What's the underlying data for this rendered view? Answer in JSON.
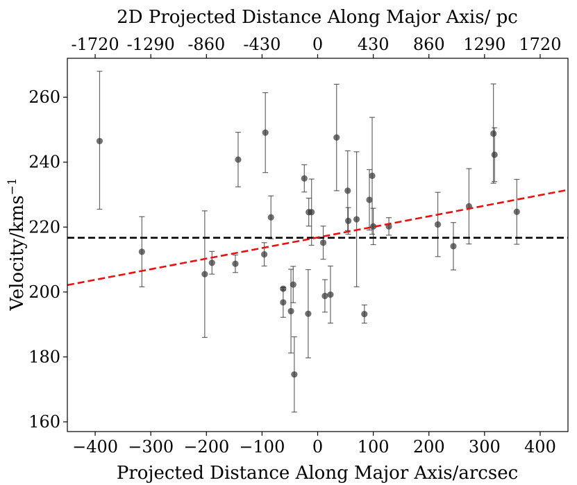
{
  "chart_data": {
    "type": "scatter",
    "title": "",
    "xlabel": "Projected Distance Along Major Axis/arcsec",
    "ylabel_main": "Velocity/kms",
    "ylabel_sup": "−1",
    "top_xlabel": "2D Projected Distance Along Major Axis/ pc",
    "xlim": [
      -450,
      450
    ],
    "ylim": [
      157,
      272
    ],
    "x_ticks": [
      -400,
      -300,
      -200,
      -100,
      0,
      100,
      200,
      300,
      400
    ],
    "x_tick_labels": [
      "−400",
      "−300",
      "−200",
      "−100",
      "0",
      "100",
      "200",
      "300",
      "400"
    ],
    "y_ticks": [
      160,
      180,
      200,
      220,
      240,
      260
    ],
    "y_tick_labels": [
      "160",
      "180",
      "200",
      "220",
      "240",
      "260"
    ],
    "top_ticks_arcsec": [
      -400,
      -300,
      -200,
      -100,
      0,
      100,
      200,
      300,
      400
    ],
    "top_tick_labels": [
      "-1720",
      "-1290",
      "-860",
      "-430",
      "0",
      "430",
      "860",
      "1290",
      "1720"
    ],
    "grid": false,
    "mean_line": {
      "y": 216.7,
      "color": "#000000",
      "style": "dashed"
    },
    "fit_line": {
      "slope": 0.0326,
      "intercept": 216.8,
      "color": "#e8110f",
      "style": "dashed"
    },
    "point_color": "#333333",
    "points": [
      {
        "x": -392,
        "y": 246.5,
        "yerr_low": 21.0,
        "yerr_high": 21.5
      },
      {
        "x": -316,
        "y": 212.4,
        "yerr_low": 10.8,
        "yerr_high": 10.8
      },
      {
        "x": -203,
        "y": 205.5,
        "yerr_low": 19.5,
        "yerr_high": 19.5
      },
      {
        "x": -190,
        "y": 209.0,
        "yerr_low": 3.5,
        "yerr_high": 3.5
      },
      {
        "x": -148,
        "y": 208.7,
        "yerr_low": 2.7,
        "yerr_high": 2.7
      },
      {
        "x": -143,
        "y": 240.8,
        "yerr_low": 8.4,
        "yerr_high": 8.4
      },
      {
        "x": -96,
        "y": 211.6,
        "yerr_low": 3.6,
        "yerr_high": 3.6
      },
      {
        "x": -94,
        "y": 249.1,
        "yerr_low": 12.3,
        "yerr_high": 12.3
      },
      {
        "x": -84,
        "y": 223.0,
        "yerr_low": 6.6,
        "yerr_high": 6.6
      },
      {
        "x": -62,
        "y": 201.0,
        "yerr_low": 0.4,
        "yerr_high": 0.4
      },
      {
        "x": -62,
        "y": 196.8,
        "yerr_low": 4.6,
        "yerr_high": 4.6
      },
      {
        "x": -48,
        "y": 194.1,
        "yerr_low": 12.9,
        "yerr_high": 12.9
      },
      {
        "x": -44,
        "y": 202.3,
        "yerr_low": 5.6,
        "yerr_high": 5.6
      },
      {
        "x": -42,
        "y": 174.6,
        "yerr_low": 11.6,
        "yerr_high": 11.6
      },
      {
        "x": -24,
        "y": 235.0,
        "yerr_low": 4.2,
        "yerr_high": 4.2
      },
      {
        "x": -16,
        "y": 224.6,
        "yerr_low": 4.3,
        "yerr_high": 4.3
      },
      {
        "x": -17,
        "y": 193.3,
        "yerr_low": 13.6,
        "yerr_high": 13.6
      },
      {
        "x": -11,
        "y": 224.6,
        "yerr_low": 10.2,
        "yerr_high": 10.2
      },
      {
        "x": 10,
        "y": 215.2,
        "yerr_low": 5.1,
        "yerr_high": 5.1
      },
      {
        "x": 13,
        "y": 198.8,
        "yerr_low": 5.0,
        "yerr_high": 5.0
      },
      {
        "x": 23,
        "y": 199.2,
        "yerr_low": 8.8,
        "yerr_high": 8.8
      },
      {
        "x": 34,
        "y": 247.6,
        "yerr_low": 16.4,
        "yerr_high": 16.4
      },
      {
        "x": 54,
        "y": 231.2,
        "yerr_low": 12.3,
        "yerr_high": 12.3
      },
      {
        "x": 55,
        "y": 221.9,
        "yerr_low": 4.1,
        "yerr_high": 4.1
      },
      {
        "x": 70,
        "y": 222.4,
        "yerr_low": 20.8,
        "yerr_high": 20.8
      },
      {
        "x": 84,
        "y": 193.2,
        "yerr_low": 2.8,
        "yerr_high": 2.8
      },
      {
        "x": 93,
        "y": 228.4,
        "yerr_low": 9.3,
        "yerr_high": 9.3
      },
      {
        "x": 98,
        "y": 235.8,
        "yerr_low": 18.0,
        "yerr_high": 18.0
      },
      {
        "x": 100,
        "y": 220.2,
        "yerr_low": 5.6,
        "yerr_high": 5.6
      },
      {
        "x": 128,
        "y": 220.2,
        "yerr_low": 2.7,
        "yerr_high": 2.7
      },
      {
        "x": 216,
        "y": 220.8,
        "yerr_low": 9.9,
        "yerr_high": 9.9
      },
      {
        "x": 244,
        "y": 214.1,
        "yerr_low": 7.3,
        "yerr_high": 7.3
      },
      {
        "x": 272,
        "y": 226.4,
        "yerr_low": 11.6,
        "yerr_high": 11.6
      },
      {
        "x": 316,
        "y": 248.8,
        "yerr_low": 15.3,
        "yerr_high": 15.3
      },
      {
        "x": 318,
        "y": 242.3,
        "yerr_low": 8.3,
        "yerr_high": 8.3
      },
      {
        "x": 358,
        "y": 224.7,
        "yerr_low": 10.0,
        "yerr_high": 10.0
      }
    ]
  }
}
